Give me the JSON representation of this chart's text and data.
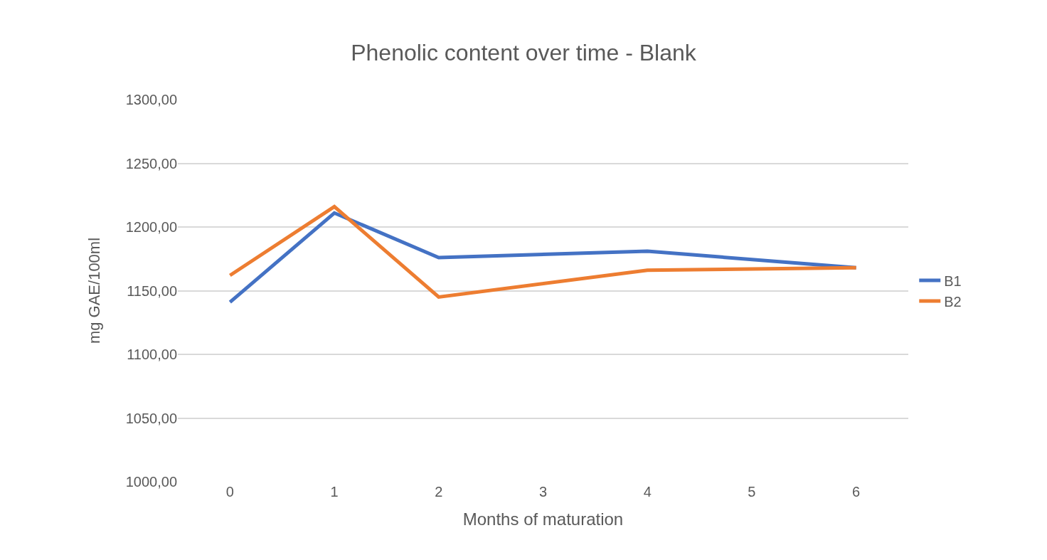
{
  "chart_data": {
    "type": "line",
    "title": "Phenolic content over time - Blank",
    "xlabel": "Months of maturation",
    "ylabel": "mg GAE/100ml",
    "xlim": [
      -0.5,
      6.5
    ],
    "xticks": [
      0,
      1,
      2,
      3,
      4,
      5,
      6
    ],
    "ylim": [
      1000,
      1300
    ],
    "yticks": [
      {
        "value": 1000,
        "label": "1000,00"
      },
      {
        "value": 1050,
        "label": "1050,00"
      },
      {
        "value": 1100,
        "label": "1100,00"
      },
      {
        "value": 1150,
        "label": "1150,00"
      },
      {
        "value": 1200,
        "label": "1200,00"
      },
      {
        "value": 1250,
        "label": "1250,00"
      },
      {
        "value": 1300,
        "label": "1300,00"
      }
    ],
    "x": [
      0,
      1,
      2,
      4,
      6
    ],
    "series": [
      {
        "name": "B1",
        "color": "#4472c4",
        "values": [
          1141,
          1211,
          1176,
          1181,
          1168
        ]
      },
      {
        "name": "B2",
        "color": "#ed7d31",
        "values": [
          1162,
          1216,
          1145,
          1166,
          1168
        ]
      }
    ],
    "grid": "y",
    "legend": "right",
    "marker": "none",
    "line_style": "solid"
  }
}
